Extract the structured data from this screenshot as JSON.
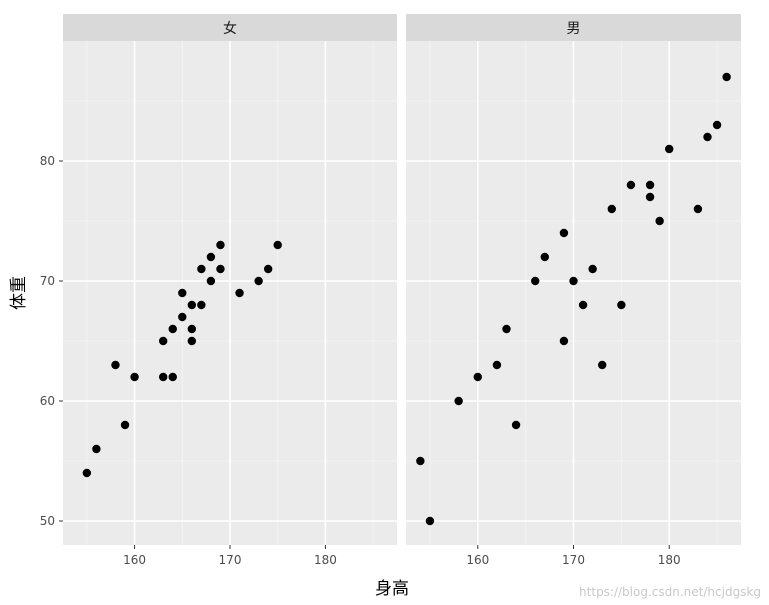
{
  "chart_data": {
    "type": "scatter",
    "facet_by": "性别",
    "xlabel": "身高",
    "ylabel": "体重",
    "xlim": [
      152.5,
      187.5
    ],
    "ylim": [
      48,
      90
    ],
    "x_ticks": [
      160,
      170,
      180
    ],
    "y_ticks": [
      50,
      60,
      70,
      80
    ],
    "grid": true,
    "point_color": "#000000",
    "panel_background": "#ebebeb",
    "strip_background": "#d9d9d9",
    "panels": [
      {
        "label": "女",
        "points": [
          [
            155,
            54
          ],
          [
            156,
            56
          ],
          [
            158,
            63
          ],
          [
            159,
            58
          ],
          [
            160,
            62
          ],
          [
            163,
            65
          ],
          [
            163,
            62
          ],
          [
            164,
            66
          ],
          [
            164,
            62
          ],
          [
            165,
            69
          ],
          [
            165,
            67
          ],
          [
            166,
            68
          ],
          [
            166,
            66
          ],
          [
            166,
            65
          ],
          [
            167,
            71
          ],
          [
            167,
            68
          ],
          [
            168,
            72
          ],
          [
            168,
            70
          ],
          [
            169,
            73
          ],
          [
            169,
            71
          ],
          [
            171,
            69
          ],
          [
            173,
            70
          ],
          [
            174,
            71
          ],
          [
            175,
            73
          ]
        ]
      },
      {
        "label": "男",
        "points": [
          [
            154,
            55
          ],
          [
            155,
            50
          ],
          [
            158,
            60
          ],
          [
            160,
            62
          ],
          [
            162,
            63
          ],
          [
            163,
            66
          ],
          [
            164,
            58
          ],
          [
            166,
            70
          ],
          [
            167,
            72
          ],
          [
            169,
            74
          ],
          [
            169,
            65
          ],
          [
            170,
            70
          ],
          [
            171,
            68
          ],
          [
            172,
            71
          ],
          [
            173,
            63
          ],
          [
            174,
            76
          ],
          [
            175,
            68
          ],
          [
            176,
            78
          ],
          [
            178,
            78
          ],
          [
            178,
            77
          ],
          [
            179,
            75
          ],
          [
            180,
            81
          ],
          [
            183,
            76
          ],
          [
            184,
            82
          ],
          [
            185,
            83
          ],
          [
            186,
            87
          ]
        ]
      }
    ]
  },
  "watermark": "https://blog.csdn.net/hcjdgskg"
}
